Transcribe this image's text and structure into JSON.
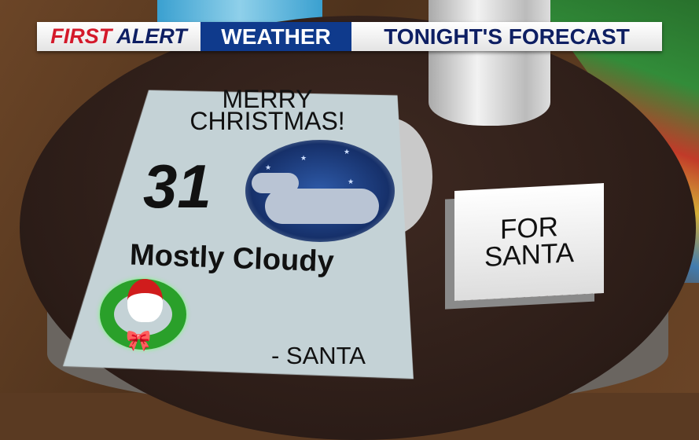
{
  "header": {
    "first": "FIRST",
    "alert": "ALERT",
    "weather": "WEATHER",
    "title": "TONIGHT'S FORECAST"
  },
  "card": {
    "greeting_line1": "MERRY",
    "greeting_line2": "CHRISTMAS!",
    "temperature": "31",
    "condition": "Mostly Cloudy",
    "condition_icon": "night-cloudy-icon",
    "signature": "- SANTA"
  },
  "tent_card": {
    "line1": "FOR",
    "line2": "SANTA"
  },
  "colors": {
    "red": "#d4192a",
    "navy": "#0e1f63",
    "blue": "#0f3a8c"
  }
}
